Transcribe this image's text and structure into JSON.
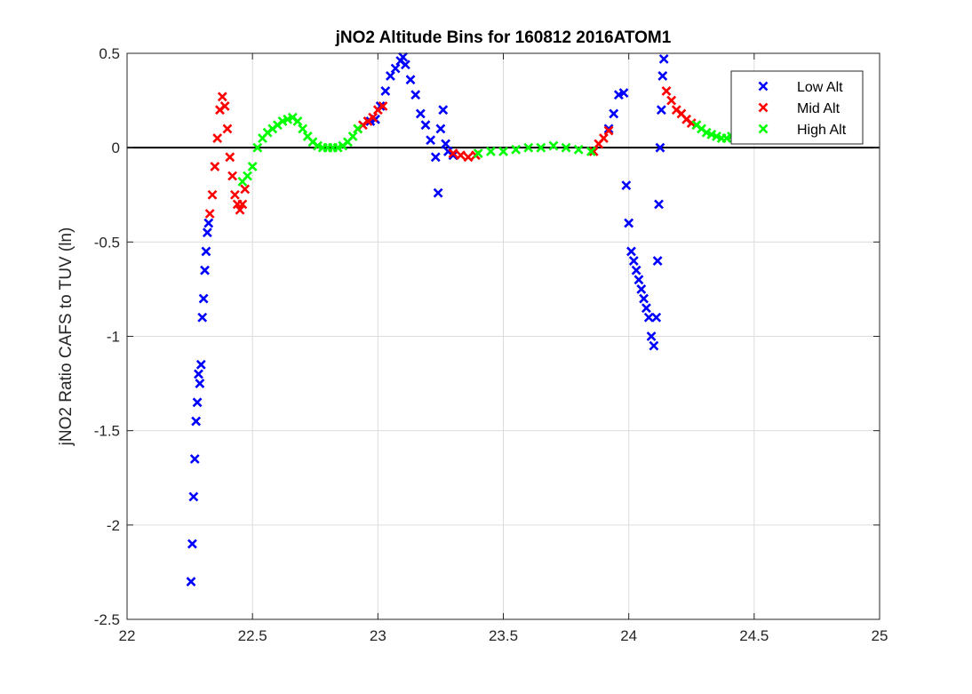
{
  "chart_data": {
    "type": "scatter",
    "title": "jNO2 Altitude Bins for 160812 2016ATOM1",
    "xlabel": "",
    "ylabel": "jNO2 Ratio CAFS to TUV (ln)",
    "xlim": [
      22,
      25
    ],
    "ylim": [
      -2.5,
      0.5
    ],
    "x_ticks": [
      "22",
      "22.5",
      "23",
      "23.5",
      "24",
      "24.5",
      "25"
    ],
    "y_ticks": [
      "0.5",
      "0",
      "-0.5",
      "-1",
      "-1.5",
      "-2",
      "-2.5"
    ],
    "grid": true,
    "reference_line_y": 0,
    "legend_position": "top-right",
    "marker": "x",
    "series": [
      {
        "name": "Low Alt",
        "color": "#0000ff",
        "x": [
          22.255,
          22.26,
          22.265,
          22.27,
          22.275,
          22.28,
          22.285,
          22.29,
          22.295,
          22.3,
          22.305,
          22.31,
          22.315,
          22.32,
          22.325,
          22.97,
          22.99,
          23.01,
          23.03,
          23.05,
          23.07,
          23.09,
          23.1,
          23.11,
          23.13,
          23.15,
          23.17,
          23.19,
          23.21,
          23.23,
          23.24,
          23.25,
          23.26,
          23.27,
          23.28,
          23.3,
          23.92,
          23.94,
          23.96,
          23.98,
          23.99,
          24.0,
          24.01,
          24.02,
          24.03,
          24.04,
          24.05,
          24.06,
          24.07,
          24.08,
          24.09,
          24.1,
          24.11,
          24.115,
          24.12,
          24.125,
          24.13,
          24.135,
          24.14
        ],
        "y": [
          -2.3,
          -2.1,
          -1.85,
          -1.65,
          -1.45,
          -1.35,
          -1.2,
          -1.25,
          -1.15,
          -0.9,
          -0.8,
          -0.65,
          -0.55,
          -0.45,
          -0.4,
          0.14,
          0.15,
          0.22,
          0.3,
          0.38,
          0.42,
          0.46,
          0.48,
          0.44,
          0.36,
          0.28,
          0.18,
          0.12,
          0.04,
          -0.05,
          -0.24,
          0.1,
          0.2,
          0.02,
          -0.02,
          -0.04,
          0.1,
          0.18,
          0.28,
          0.29,
          -0.2,
          -0.4,
          -0.55,
          -0.6,
          -0.65,
          -0.7,
          -0.75,
          -0.8,
          -0.85,
          -0.9,
          -1.0,
          -1.05,
          -0.9,
          -0.6,
          -0.3,
          0.0,
          0.2,
          0.38,
          0.47
        ]
      },
      {
        "name": "Mid Alt",
        "color": "#ff0000",
        "x": [
          22.33,
          22.34,
          22.35,
          22.36,
          22.37,
          22.38,
          22.39,
          22.4,
          22.41,
          22.42,
          22.43,
          22.44,
          22.45,
          22.46,
          22.47,
          22.92,
          22.94,
          22.96,
          22.98,
          23.0,
          23.02,
          23.3,
          23.33,
          23.36,
          23.39,
          23.86,
          23.88,
          23.9,
          23.92,
          24.15,
          24.17,
          24.19,
          24.21,
          24.23,
          24.25,
          24.27
        ],
        "y": [
          -0.35,
          -0.25,
          -0.1,
          0.05,
          0.2,
          0.27,
          0.22,
          0.1,
          -0.05,
          -0.15,
          -0.25,
          -0.3,
          -0.33,
          -0.3,
          -0.22,
          0.1,
          0.12,
          0.14,
          0.16,
          0.2,
          0.22,
          -0.03,
          -0.04,
          -0.05,
          -0.04,
          -0.02,
          0.02,
          0.05,
          0.09,
          0.3,
          0.25,
          0.2,
          0.18,
          0.15,
          0.13,
          0.12
        ]
      },
      {
        "name": "High Alt",
        "color": "#00ff00",
        "x": [
          22.46,
          22.48,
          22.5,
          22.52,
          22.54,
          22.56,
          22.58,
          22.6,
          22.62,
          22.64,
          22.66,
          22.68,
          22.7,
          22.72,
          22.74,
          22.76,
          22.78,
          22.8,
          22.82,
          22.84,
          22.86,
          22.88,
          22.9,
          22.92,
          23.4,
          23.45,
          23.5,
          23.55,
          23.6,
          23.65,
          23.7,
          23.75,
          23.8,
          23.85,
          24.27,
          24.29,
          24.31,
          24.33,
          24.35,
          24.37,
          24.39,
          24.41
        ],
        "y": [
          -0.18,
          -0.15,
          -0.1,
          0.0,
          0.05,
          0.08,
          0.1,
          0.12,
          0.14,
          0.15,
          0.16,
          0.14,
          0.1,
          0.06,
          0.03,
          0.01,
          0.0,
          0.0,
          0.0,
          0.0,
          0.01,
          0.03,
          0.06,
          0.1,
          -0.03,
          -0.02,
          -0.02,
          -0.01,
          0.0,
          0.0,
          0.01,
          0.0,
          -0.01,
          -0.02,
          0.12,
          0.1,
          0.08,
          0.07,
          0.06,
          0.05,
          0.05,
          0.06
        ]
      }
    ]
  }
}
